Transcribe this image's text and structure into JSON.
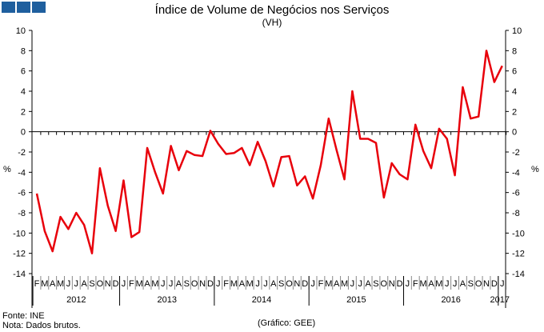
{
  "chart_data": {
    "type": "line",
    "title": "Índice de Volume de Negócios nos Serviços",
    "subtitle": "(VH)",
    "ylabel": "%",
    "ylim": [
      -14,
      10
    ],
    "yticks": [
      -14,
      -12,
      -10,
      -8,
      -6,
      -4,
      -2,
      0,
      2,
      4,
      6,
      8,
      10
    ],
    "month_labels": [
      "F",
      "M",
      "A",
      "M",
      "J",
      "J",
      "A",
      "S",
      "O",
      "N",
      "D",
      "J",
      "F",
      "M",
      "A",
      "M",
      "J",
      "J",
      "A",
      "S",
      "O",
      "N",
      "D",
      "J",
      "F",
      "M",
      "A",
      "M",
      "J",
      "J",
      "A",
      "S",
      "O",
      "N",
      "D",
      "J",
      "F",
      "M",
      "A",
      "M",
      "J",
      "J",
      "A",
      "S",
      "O",
      "N",
      "D",
      "J",
      "F",
      "M",
      "A",
      "M",
      "J",
      "J",
      "A",
      "S",
      "O",
      "N",
      "D",
      "J"
    ],
    "years": [
      {
        "label": "2012",
        "start": 0,
        "count": 11
      },
      {
        "label": "2013",
        "start": 11,
        "count": 12
      },
      {
        "label": "2014",
        "start": 23,
        "count": 12
      },
      {
        "label": "2015",
        "start": 35,
        "count": 12
      },
      {
        "label": "2016",
        "start": 47,
        "count": 12
      },
      {
        "label": "2017",
        "start": 59,
        "count": 1
      }
    ],
    "series": [
      {
        "name": "VH",
        "color": "#e8000b",
        "values": [
          -6.1,
          -9.8,
          -11.8,
          -8.4,
          -9.6,
          -8.0,
          -9.2,
          -12.0,
          -3.6,
          -7.3,
          -9.8,
          -4.8,
          -10.4,
          -9.9,
          -1.6,
          -4.0,
          -6.1,
          -1.4,
          -3.8,
          -1.9,
          -2.3,
          -2.4,
          0.1,
          -1.2,
          -2.2,
          -2.1,
          -1.6,
          -3.3,
          -1.0,
          -2.9,
          -5.4,
          -2.5,
          -2.4,
          -5.3,
          -4.4,
          -6.6,
          -3.3,
          1.3,
          -1.8,
          -4.7,
          4.0,
          -0.7,
          -0.7,
          -1.1,
          -6.5,
          -3.1,
          -4.2,
          -4.7,
          0.7,
          -1.9,
          -3.6,
          0.3,
          -0.7,
          -4.3,
          4.4,
          1.3,
          1.5,
          8.0,
          4.9,
          6.5
        ]
      }
    ],
    "grid": false
  },
  "footer": {
    "source": "Fonte: INE",
    "note": "Nota: Dados brutos.",
    "credit": "(Gráfico: GEE)"
  }
}
